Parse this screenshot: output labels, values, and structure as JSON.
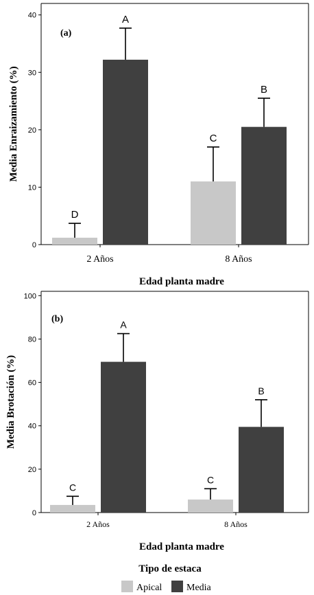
{
  "colors": {
    "apical": "#c8c8c8",
    "media": "#404040",
    "axis": "#000000"
  },
  "chart_data": [
    {
      "type": "bar",
      "panel_label": "(a)",
      "xlabel": "Edad planta madre",
      "ylabel": "Media Enraizamiento (%)",
      "ylim": [
        0,
        42
      ],
      "yticks": [
        0,
        10,
        20,
        30,
        40
      ],
      "categories": [
        "2 Años",
        "8 Años"
      ],
      "series": [
        {
          "name": "Apical",
          "values": [
            1.2,
            11.0
          ],
          "error": [
            2.5,
            6.0
          ],
          "letters": [
            "D",
            "C"
          ]
        },
        {
          "name": "Media",
          "values": [
            32.2,
            20.5
          ],
          "error": [
            5.5,
            5.0
          ],
          "letters": [
            "A",
            "B"
          ]
        }
      ]
    },
    {
      "type": "bar",
      "panel_label": "(b)",
      "xlabel": "Edad planta madre",
      "ylabel": "Media Brotación (%)",
      "ylim": [
        0,
        102
      ],
      "yticks": [
        0,
        20,
        40,
        60,
        80,
        100
      ],
      "categories": [
        "2 Años",
        "8 Años"
      ],
      "series": [
        {
          "name": "Apical",
          "values": [
            3.5,
            6.0
          ],
          "error": [
            4.0,
            5.0
          ],
          "letters": [
            "C",
            "C"
          ]
        },
        {
          "name": "Media",
          "values": [
            69.5,
            39.5
          ],
          "error": [
            13.0,
            12.5
          ],
          "letters": [
            "A",
            "B"
          ]
        }
      ]
    }
  ],
  "legend": {
    "title": "Tipo de estaca",
    "items": [
      {
        "label": "Apical",
        "color": "#c8c8c8"
      },
      {
        "label": "Media",
        "color": "#404040"
      }
    ]
  }
}
